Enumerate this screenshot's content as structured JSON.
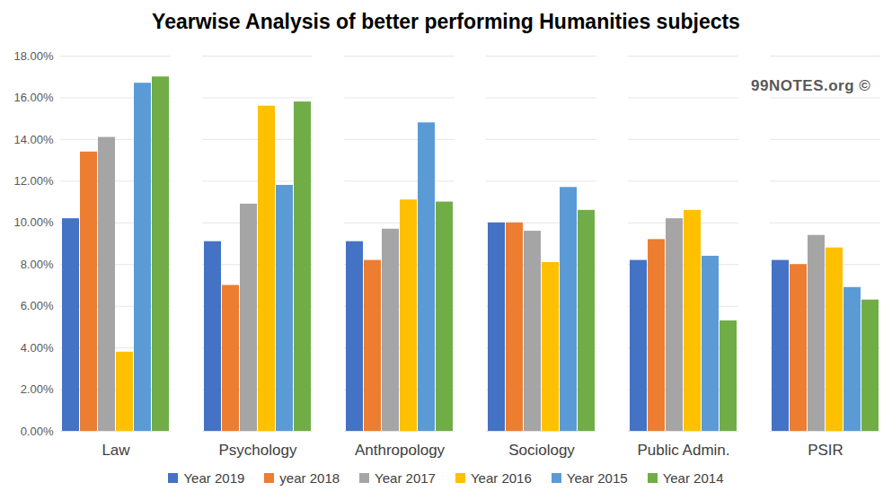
{
  "chart_data": {
    "type": "bar",
    "title": "Yearwise Analysis of better performing Humanities subjects",
    "categories": [
      "Law",
      "Psychology",
      "Anthropology",
      "Sociology",
      "Public Admin.",
      "PSIR"
    ],
    "series": [
      {
        "name": "Year 2019",
        "color": "#4472c4",
        "values": [
          10.2,
          9.1,
          9.1,
          10.0,
          8.2,
          8.2
        ]
      },
      {
        "name": "year 2018",
        "color": "#ed7d31",
        "values": [
          13.4,
          7.0,
          8.2,
          10.0,
          9.2,
          8.0
        ]
      },
      {
        "name": "Year 2017",
        "color": "#a5a5a5",
        "values": [
          14.1,
          10.9,
          9.7,
          9.6,
          10.2,
          9.4
        ]
      },
      {
        "name": "Year 2016",
        "color": "#ffc000",
        "values": [
          3.8,
          15.6,
          11.1,
          8.1,
          10.6,
          8.8
        ]
      },
      {
        "name": "Year 2015",
        "color": "#5b9bd5",
        "values": [
          16.7,
          11.8,
          14.8,
          11.7,
          8.4,
          6.9
        ]
      },
      {
        "name": "Year 2014",
        "color": "#70ad47",
        "values": [
          17.0,
          15.8,
          11.0,
          10.6,
          5.3,
          6.3
        ]
      }
    ],
    "ylim": [
      0,
      18
    ],
    "yticks": [
      {
        "value": 0,
        "label": "0.00%"
      },
      {
        "value": 2,
        "label": "2.00%"
      },
      {
        "value": 4,
        "label": "4.00%"
      },
      {
        "value": 6,
        "label": "6.00%"
      },
      {
        "value": 8,
        "label": "8.00%"
      },
      {
        "value": 10,
        "label": "10.00%"
      },
      {
        "value": 12,
        "label": "12.00%"
      },
      {
        "value": 14,
        "label": "14.00%"
      },
      {
        "value": 16,
        "label": "16.00%"
      },
      {
        "value": 18,
        "label": "18.00%"
      }
    ],
    "grid": true,
    "legend": "bottom",
    "annotations": [
      "99NOTES.org ©"
    ]
  }
}
